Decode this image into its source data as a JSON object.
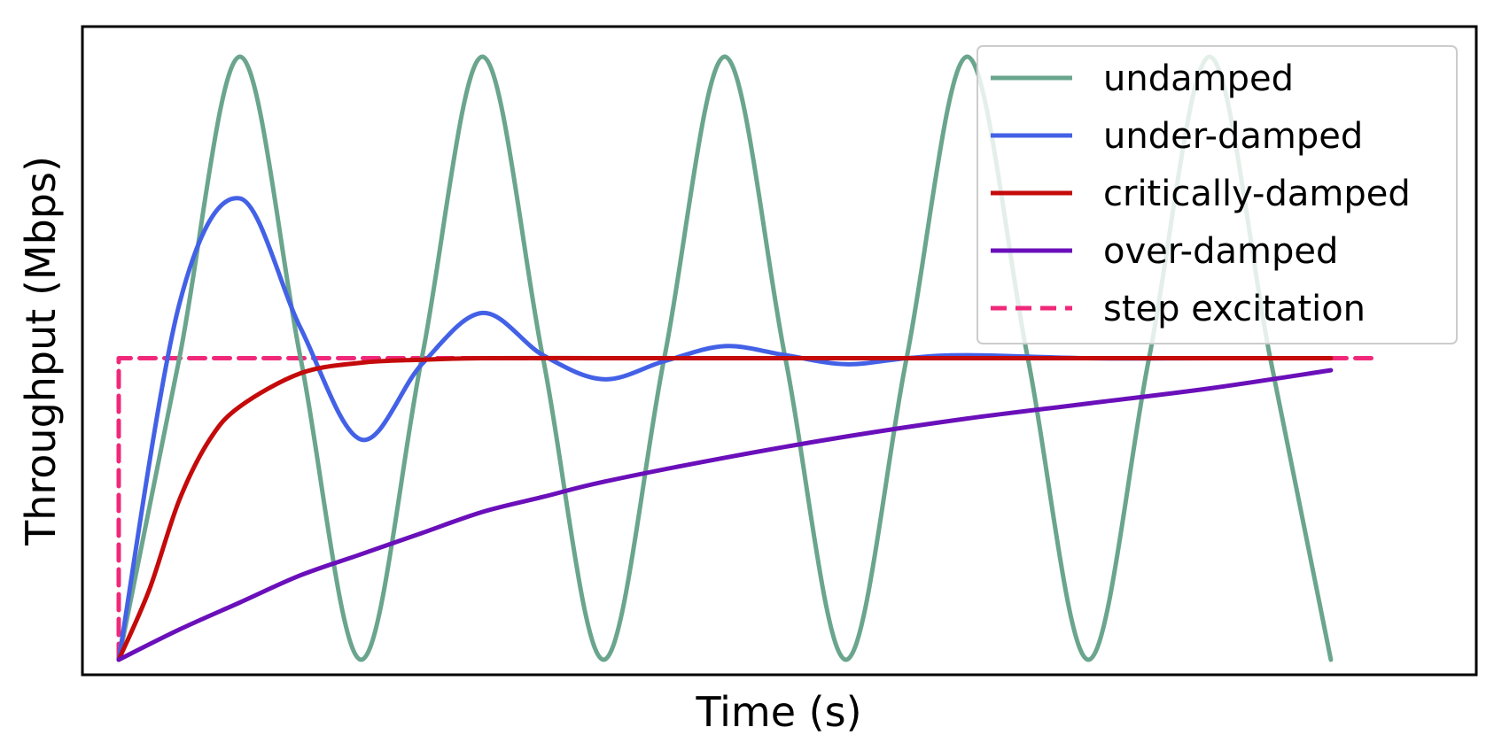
{
  "chart_data": {
    "type": "line",
    "title": "",
    "xlabel": "Time (s)",
    "ylabel": "Throughput (Mbps)",
    "xticks": false,
    "yticks": false,
    "grid": false,
    "xlim": [
      -0.3,
      11.2
    ],
    "ylim": [
      -0.05,
      2.1
    ],
    "legend_position": "top-right",
    "step": {
      "name": "step excitation",
      "x": [
        0,
        0,
        10.4
      ],
      "y": [
        0,
        1,
        1
      ],
      "color": "#f0287a",
      "dashed": true
    },
    "series": [
      {
        "name": "undamped",
        "color": "#6aa58d",
        "x": [
          0,
          0.5,
          1,
          1.5,
          2,
          2.5,
          3,
          3.5,
          4,
          4.5,
          5,
          5.5,
          6,
          6.5,
          7,
          7.5,
          8,
          8.5,
          9,
          9.5,
          10
        ],
        "y": [
          0,
          1,
          2,
          1,
          0,
          1,
          2,
          1,
          0,
          1,
          2,
          1,
          0,
          1,
          2,
          1,
          0,
          1,
          2,
          1,
          0
        ]
      },
      {
        "name": "under-damped",
        "color": "#4361e6",
        "x": [
          0,
          0.5,
          1,
          1.5,
          2,
          2.5,
          3,
          3.5,
          4,
          4.5,
          5,
          5.5,
          6,
          6.5,
          7,
          8,
          9,
          10
        ],
        "y": [
          0,
          1.18,
          1.53,
          1.1,
          0.73,
          0.98,
          1.15,
          1.01,
          0.93,
          0.99,
          1.04,
          1.01,
          0.98,
          1.0,
          1.01,
          1.0,
          1.0,
          1.0
        ]
      },
      {
        "name": "critically-damped",
        "color": "#c40a0a",
        "x": [
          0,
          0.25,
          0.5,
          0.75,
          1,
          1.5,
          2,
          2.5,
          3,
          4,
          5,
          6,
          7,
          8,
          9,
          10
        ],
        "y": [
          0,
          0.23,
          0.53,
          0.73,
          0.84,
          0.95,
          0.985,
          0.995,
          1.0,
          1.0,
          1.0,
          1.0,
          1.0,
          1.0,
          1.0,
          1.0
        ]
      },
      {
        "name": "over-damped",
        "color": "#6a0fba",
        "x": [
          0,
          0.5,
          1,
          1.5,
          2,
          2.5,
          3,
          3.5,
          4,
          5,
          6,
          7,
          8,
          9,
          10
        ],
        "y": [
          0,
          0.1,
          0.19,
          0.28,
          0.35,
          0.42,
          0.49,
          0.54,
          0.59,
          0.67,
          0.74,
          0.8,
          0.85,
          0.9,
          0.96
        ]
      }
    ],
    "legend": [
      "undamped",
      "under-damped",
      "critically-damped",
      "over-damped",
      "step excitation"
    ]
  }
}
